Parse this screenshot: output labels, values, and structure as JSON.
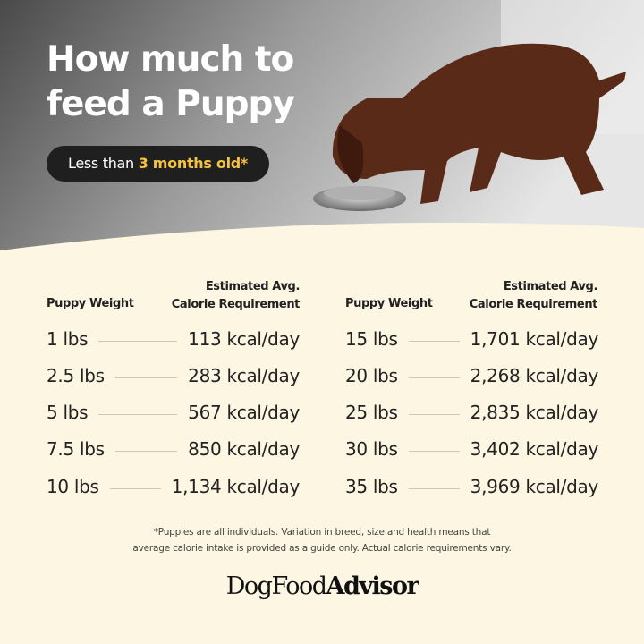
{
  "header": {
    "title_line1": "How much to",
    "title_line2": "feed a Puppy",
    "pill_prefix": "Less than",
    "pill_highlight": "3 months old*"
  },
  "colors": {
    "accent": "#f3c340",
    "background": "#fcf6e2",
    "pill": "#1f1f1f"
  },
  "table": {
    "headers": {
      "weight": "Puppy Weight",
      "calorie_line1": "Estimated Avg.",
      "calorie_line2": "Calorie Requirement"
    },
    "left": [
      {
        "weight": "1 lbs",
        "calories": "113 kcal/day"
      },
      {
        "weight": "2.5 lbs",
        "calories": "283 kcal/day"
      },
      {
        "weight": "5 lbs",
        "calories": "567 kcal/day"
      },
      {
        "weight": "7.5 lbs",
        "calories": "850 kcal/day"
      },
      {
        "weight": "10 lbs",
        "calories": "1,134 kcal/day"
      }
    ],
    "right": [
      {
        "weight": "15 lbs",
        "calories": "1,701 kcal/day"
      },
      {
        "weight": "20 lbs",
        "calories": "2,268 kcal/day"
      },
      {
        "weight": "25 lbs",
        "calories": "2,835 kcal/day"
      },
      {
        "weight": "30 lbs",
        "calories": "3,402 kcal/day"
      },
      {
        "weight": "35 lbs",
        "calories": "3,969 kcal/day"
      }
    ]
  },
  "footnote": {
    "line1": "*Puppies are all individuals. Variation in breed, size and health means that",
    "line2": "average calorie intake is provided as a guide only. Actual calorie requirements vary."
  },
  "logo": {
    "part1": "DogFood",
    "part2": "Advisor"
  }
}
